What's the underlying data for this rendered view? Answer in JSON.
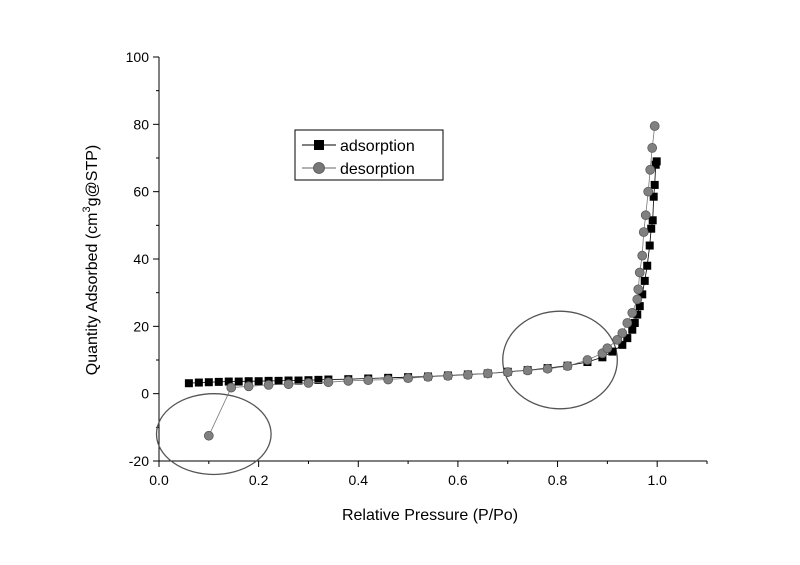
{
  "chart_data": {
    "type": "scatter",
    "title": "",
    "xlabel": "Relative Pressure (P/Po)",
    "ylabel_parts": {
      "pre": "Quantity Adsorbed (cm",
      "sup": "3",
      "post": "g@STP)"
    },
    "xlim": [
      0.0,
      1.1
    ],
    "ylim": [
      -20,
      100
    ],
    "xticks": [
      "0.0",
      "0.2",
      "0.4",
      "0.6",
      "0.8",
      "1.0"
    ],
    "yticks": [
      "-20",
      "0",
      "20",
      "40",
      "60",
      "80",
      "100"
    ],
    "grid": false,
    "legend_position": "upper-left",
    "series": [
      {
        "name": "adsorption",
        "marker": "square",
        "color": "#000000",
        "points": [
          [
            0.06,
            3.1
          ],
          [
            0.08,
            3.3
          ],
          [
            0.1,
            3.4
          ],
          [
            0.12,
            3.5
          ],
          [
            0.14,
            3.6
          ],
          [
            0.16,
            3.6
          ],
          [
            0.18,
            3.7
          ],
          [
            0.2,
            3.7
          ],
          [
            0.22,
            3.8
          ],
          [
            0.24,
            3.8
          ],
          [
            0.26,
            3.9
          ],
          [
            0.28,
            3.9
          ],
          [
            0.3,
            4.0
          ],
          [
            0.32,
            4.1
          ],
          [
            0.34,
            4.2
          ],
          [
            0.38,
            4.3
          ],
          [
            0.42,
            4.5
          ],
          [
            0.46,
            4.7
          ],
          [
            0.5,
            4.9
          ],
          [
            0.54,
            5.1
          ],
          [
            0.58,
            5.4
          ],
          [
            0.62,
            5.7
          ],
          [
            0.66,
            6.0
          ],
          [
            0.7,
            6.5
          ],
          [
            0.74,
            7.0
          ],
          [
            0.78,
            7.6
          ],
          [
            0.82,
            8.3
          ],
          [
            0.86,
            9.4
          ],
          [
            0.89,
            10.8
          ],
          [
            0.91,
            12.5
          ],
          [
            0.93,
            14.5
          ],
          [
            0.94,
            16.5
          ],
          [
            0.95,
            19.0
          ],
          [
            0.955,
            21.0
          ],
          [
            0.96,
            23.5
          ],
          [
            0.965,
            26.0
          ],
          [
            0.97,
            29.5
          ],
          [
            0.975,
            33.5
          ],
          [
            0.98,
            38.0
          ],
          [
            0.985,
            44.0
          ],
          [
            0.988,
            49.0
          ],
          [
            0.991,
            51.5
          ],
          [
            0.993,
            58.5
          ],
          [
            0.995,
            62.0
          ],
          [
            0.997,
            68.0
          ],
          [
            0.999,
            69.0
          ]
        ]
      },
      {
        "name": "desorption",
        "marker": "circle",
        "color": "#666666",
        "points": [
          [
            0.1,
            -12.5
          ],
          [
            0.145,
            1.8
          ],
          [
            0.18,
            2.2
          ],
          [
            0.22,
            2.6
          ],
          [
            0.26,
            2.8
          ],
          [
            0.3,
            3.2
          ],
          [
            0.34,
            3.4
          ],
          [
            0.38,
            3.8
          ],
          [
            0.42,
            4.0
          ],
          [
            0.46,
            4.2
          ],
          [
            0.5,
            4.6
          ],
          [
            0.54,
            5.0
          ],
          [
            0.58,
            5.3
          ],
          [
            0.62,
            5.6
          ],
          [
            0.66,
            6.0
          ],
          [
            0.7,
            6.4
          ],
          [
            0.74,
            6.9
          ],
          [
            0.78,
            7.4
          ],
          [
            0.82,
            8.2
          ],
          [
            0.86,
            10.0
          ],
          [
            0.89,
            12.0
          ],
          [
            0.9,
            13.5
          ],
          [
            0.92,
            16.0
          ],
          [
            0.93,
            18.0
          ],
          [
            0.94,
            21.0
          ],
          [
            0.95,
            24.0
          ],
          [
            0.96,
            28.0
          ],
          [
            0.962,
            31.0
          ],
          [
            0.965,
            36.0
          ],
          [
            0.97,
            41.0
          ],
          [
            0.973,
            48.0
          ],
          [
            0.977,
            53.0
          ],
          [
            0.982,
            60.0
          ],
          [
            0.986,
            66.5
          ],
          [
            0.99,
            73.0
          ],
          [
            0.995,
            79.5
          ]
        ]
      }
    ],
    "annotations": [
      {
        "shape": "ellipse",
        "cx": 0.11,
        "cy": -12,
        "rx": 0.115,
        "ry": 12
      },
      {
        "shape": "ellipse",
        "cx": 0.805,
        "cy": 10,
        "rx": 0.115,
        "ry": 14.5
      }
    ]
  }
}
